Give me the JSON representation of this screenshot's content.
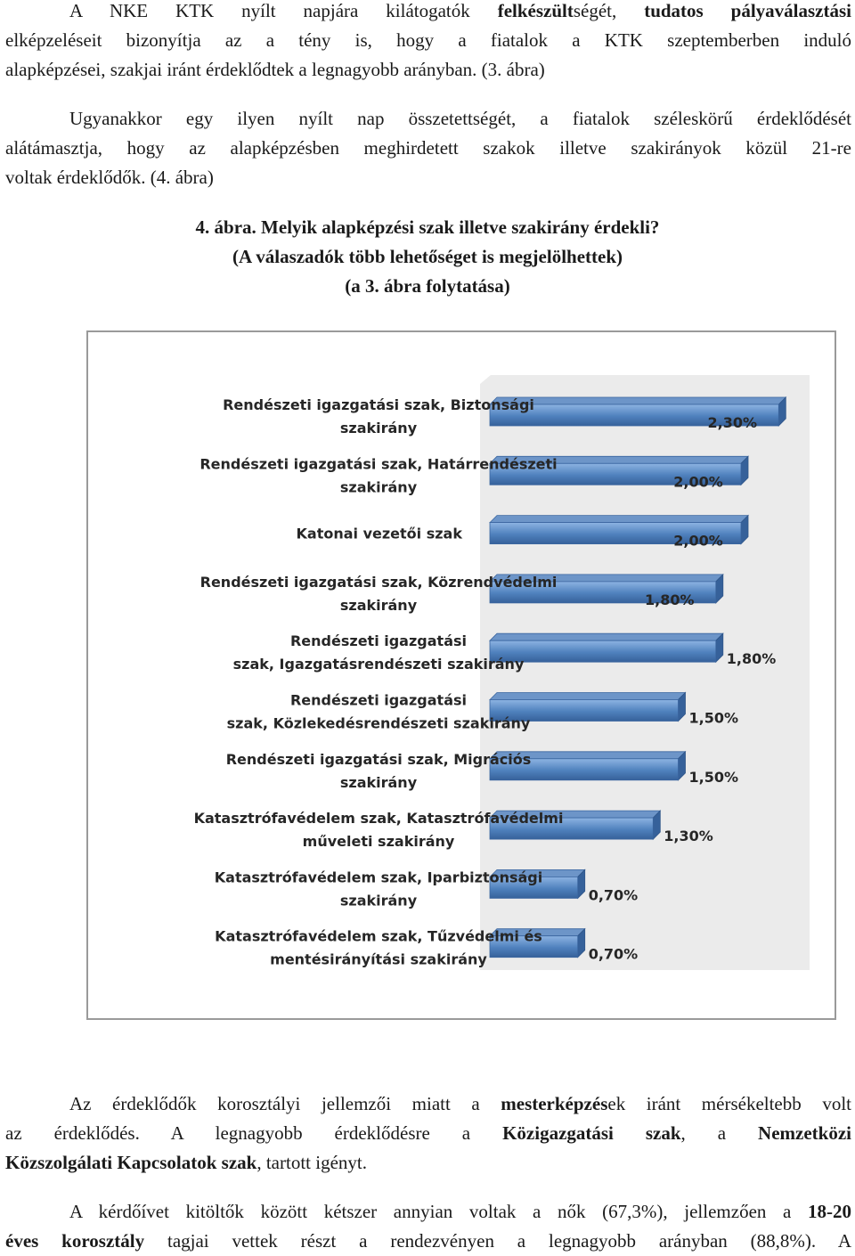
{
  "paragraph1": {
    "lines": [
      [
        {
          "t": "A NKE KTK nyílt napjára kilátogatók "
        },
        {
          "t": "felkészült",
          "b": true
        },
        {
          "t": "ségét, "
        },
        {
          "t": "tudatos pályaválasztási",
          "b": true
        }
      ],
      [
        {
          "t": "elképzeléseit bizonyítja az a tény is, hogy a fiatalok a KTK szeptemberben induló"
        }
      ],
      [
        {
          "t": "alapképzései, szakjai iránt érdeklődtek a legnagyobb arányban. (3. ábra)"
        }
      ]
    ]
  },
  "paragraph2": {
    "lines": [
      [
        {
          "t": "Ugyanakkor egy ilyen nyílt nap összetettségét, a fiatalok széleskörű érdeklődését"
        }
      ],
      [
        {
          "t": "alátámasztja, hogy az alapképzésben meghirdetett szakok illetve szakirányok közül 21-re"
        }
      ],
      [
        {
          "t": "voltak érdeklődők. (4. ábra)"
        }
      ]
    ]
  },
  "caption": {
    "line1": "4.   ábra. Melyik alapképzési szak illetve szakirány érdekli?",
    "line2": "(A válaszadók több lehetőséget is megjelölhettek)",
    "line3": "(a 3. ábra folytatása)"
  },
  "chart_data": {
    "type": "bar",
    "orientation": "horizontal",
    "categories": [
      [
        "Rendészeti igazgatási szak, Biztonsági",
        "szakirány"
      ],
      [
        "Rendészeti igazgatási szak, Határrendészeti",
        "szakirány"
      ],
      [
        "Katonai vezetői szak"
      ],
      [
        "Rendészeti igazgatási szak, Közrendvédelmi",
        "szakirány"
      ],
      [
        "Rendészeti igazgatási",
        "szak,  Igazgatásrendészeti szakirány"
      ],
      [
        "Rendészeti igazgatási",
        "szak, Közlekedésrendészeti szakirány"
      ],
      [
        "Rendészeti igazgatási szak, Migrációs",
        "szakirány"
      ],
      [
        "Katasztrófavédelem szak, Katasztrófavédelmi",
        "műveleti szakirány"
      ],
      [
        "Katasztrófavédelem szak, Iparbiztonsági",
        "szakirány"
      ],
      [
        "Katasztrófavédelem szak, Tűzvédelmi és",
        "mentésirányítási szakirány"
      ]
    ],
    "values": [
      2.3,
      2.0,
      2.0,
      1.8,
      1.8,
      1.5,
      1.5,
      1.3,
      0.7,
      0.7
    ],
    "data_labels": [
      "2,30%",
      "2,00%",
      "2,00%",
      "1,80%",
      "1,80%",
      "1,50%",
      "1,50%",
      "1,30%",
      "0,70%",
      "0,70%"
    ],
    "colors": {
      "bar_front": "#4f81bd",
      "bar_light": "#8db3e2",
      "bar_top": "#6d95c8",
      "bar_side": "#36619a",
      "back_wall": "#ebebeb",
      "label": "#262626"
    },
    "grid": false,
    "legend": "none"
  },
  "paragraph3": {
    "lines": [
      [
        {
          "t": "Az érdeklődők korosztályi jellemzői miatt a "
        },
        {
          "t": "mesterképzés",
          "b": true
        },
        {
          "t": "ek iránt mérsékeltebb volt"
        }
      ],
      [
        {
          "t": "az érdeklődés. A legnagyobb érdeklődésre a "
        },
        {
          "t": "Közigazgatási szak",
          "b": true
        },
        {
          "t": ", a "
        },
        {
          "t": "Nemzetközi",
          "b": true
        }
      ],
      [
        {
          "t": "Közszolgálati Kapcsolatok szak",
          "b": true
        },
        {
          "t": ", tartott igényt."
        }
      ]
    ]
  },
  "paragraph4": {
    "lines": [
      [
        {
          "t": "A kérdőívet kitöltők között kétszer annyian voltak a nők (67,3%), jellemzően a "
        },
        {
          "t": "18-20",
          "b": true
        }
      ],
      [
        {
          "t": "éves korosztály",
          "b": true
        },
        {
          "t": " tagjai vettek részt a rendezvényen a legnagyobb arányban (88,8%). A"
        }
      ]
    ]
  }
}
